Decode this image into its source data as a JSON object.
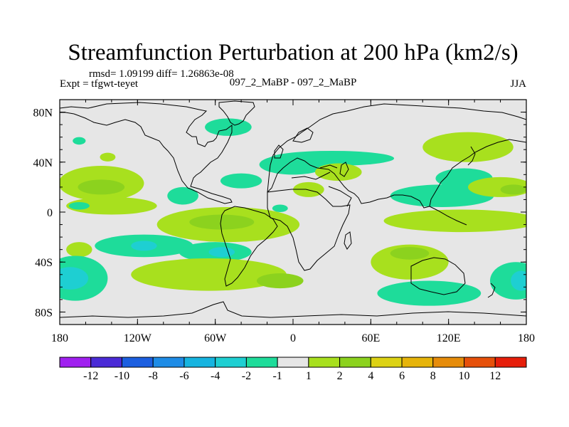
{
  "chart_data": {
    "type": "heatmap",
    "title": "Streamfunction Perturbation at 200 hPa (km2/s)",
    "stats": "rmsd= 1.09199 diff= 1.26863e-08",
    "experiment": "Expt = tfgwt-teyet",
    "subtitle": "097_2_MaBP - 097_2_MaBP",
    "season": "JJA",
    "xlim": [
      -180,
      180
    ],
    "ylim": [
      -90,
      90
    ],
    "x_ticks": [
      {
        "value": -180,
        "label": "180"
      },
      {
        "value": -120,
        "label": "120W"
      },
      {
        "value": -60,
        "label": "60W"
      },
      {
        "value": 0,
        "label": "0"
      },
      {
        "value": 60,
        "label": "60E"
      },
      {
        "value": 120,
        "label": "120E"
      },
      {
        "value": 180,
        "label": "180"
      }
    ],
    "y_ticks": [
      {
        "value": 80,
        "label": "80N"
      },
      {
        "value": 40,
        "label": "40N"
      },
      {
        "value": 0,
        "label": "0"
      },
      {
        "value": -40,
        "label": "40S"
      },
      {
        "value": -80,
        "label": "80S"
      }
    ],
    "colorbar": {
      "colors": [
        "#a020f0",
        "#4b2bd7",
        "#1c5fe0",
        "#1e8ce6",
        "#16b4e0",
        "#1ecfd2",
        "#1edc9a",
        "#e6e6e6",
        "#a8e01e",
        "#8cd21e",
        "#dcd214",
        "#e6b40a",
        "#e68c0a",
        "#e6500a",
        "#e61e0a"
      ],
      "labels": [
        "-12",
        "-10",
        "-8",
        "-6",
        "-4",
        "-2",
        "-1",
        "1",
        "2",
        "4",
        "6",
        "8",
        "10",
        "12"
      ]
    },
    "anomalies": [
      {
        "lon": -165,
        "lat": 57,
        "rx": 5,
        "ry": 3,
        "value": -1.5
      },
      {
        "lon": -143,
        "lat": 44,
        "rx": 6,
        "ry": 3.5,
        "value": 1.5
      },
      {
        "lon": -148,
        "lat": 23,
        "rx": 33,
        "ry": 14,
        "value": 1.5
      },
      {
        "lon": -148,
        "lat": 20,
        "rx": 18,
        "ry": 6,
        "value": 4
      },
      {
        "lon": -140,
        "lat": 5,
        "rx": 35,
        "ry": 7,
        "value": 1.5
      },
      {
        "lon": -165,
        "lat": 5,
        "rx": 8,
        "ry": 3,
        "value": -1.5
      },
      {
        "lon": -10,
        "lat": 3,
        "rx": 6,
        "ry": 3,
        "value": -1.5
      },
      {
        "lon": -85,
        "lat": 13,
        "rx": 12,
        "ry": 7,
        "value": -1.5
      },
      {
        "lon": -50,
        "lat": 68,
        "rx": 18,
        "ry": 7,
        "value": -1.5
      },
      {
        "lon": 0,
        "lat": 38,
        "rx": 26,
        "ry": 8,
        "value": -1.5
      },
      {
        "lon": 30,
        "lat": 43,
        "rx": 48,
        "ry": 6,
        "value": -1.5
      },
      {
        "lon": -40,
        "lat": 25,
        "rx": 16,
        "ry": 6,
        "value": -1.5
      },
      {
        "lon": 12,
        "lat": 18,
        "rx": 12,
        "ry": 6,
        "value": 1.5
      },
      {
        "lon": 35,
        "lat": 32,
        "rx": 18,
        "ry": 7,
        "value": 1.5
      },
      {
        "lon": 135,
        "lat": 52,
        "rx": 35,
        "ry": 12,
        "value": 1.5
      },
      {
        "lon": 132,
        "lat": 27,
        "rx": 22,
        "ry": 8,
        "value": -1.5
      },
      {
        "lon": 115,
        "lat": 13,
        "rx": 40,
        "ry": 9,
        "value": -1.5
      },
      {
        "lon": 160,
        "lat": 20,
        "rx": 25,
        "ry": 8,
        "value": 1.5
      },
      {
        "lon": 170,
        "lat": 18,
        "rx": 10,
        "ry": 4,
        "value": 4
      },
      {
        "lon": 130,
        "lat": -7,
        "rx": 60,
        "ry": 9,
        "value": 1.5
      },
      {
        "lon": -50,
        "lat": -10,
        "rx": 55,
        "ry": 14,
        "value": 1.5
      },
      {
        "lon": -55,
        "lat": -8,
        "rx": 25,
        "ry": 6,
        "value": 2.5
      },
      {
        "lon": -115,
        "lat": -27,
        "rx": 38,
        "ry": 9,
        "value": -1.5
      },
      {
        "lon": -115,
        "lat": -27,
        "rx": 10,
        "ry": 4,
        "value": -3
      },
      {
        "lon": -60,
        "lat": -32,
        "rx": 28,
        "ry": 8,
        "value": -1.5
      },
      {
        "lon": -55,
        "lat": -32,
        "rx": 10,
        "ry": 4,
        "value": -3
      },
      {
        "lon": 90,
        "lat": -40,
        "rx": 30,
        "ry": 14,
        "value": 1.5
      },
      {
        "lon": 90,
        "lat": -33,
        "rx": 15,
        "ry": 5,
        "value": 4
      },
      {
        "lon": -165,
        "lat": -30,
        "rx": 10,
        "ry": 6,
        "value": 1.5
      },
      {
        "lon": -168,
        "lat": -53,
        "rx": 25,
        "ry": 18,
        "value": -1.5
      },
      {
        "lon": -172,
        "lat": -53,
        "rx": 14,
        "ry": 9,
        "value": -3
      },
      {
        "lon": -65,
        "lat": -50,
        "rx": 60,
        "ry": 13,
        "value": 1.5
      },
      {
        "lon": -10,
        "lat": -55,
        "rx": 18,
        "ry": 6,
        "value": 4
      },
      {
        "lon": 105,
        "lat": -65,
        "rx": 40,
        "ry": 10,
        "value": -1.5
      },
      {
        "lon": 172,
        "lat": -55,
        "rx": 20,
        "ry": 15,
        "value": -1.5
      },
      {
        "lon": 176,
        "lat": -55,
        "rx": 8,
        "ry": 8,
        "value": -3
      }
    ]
  }
}
